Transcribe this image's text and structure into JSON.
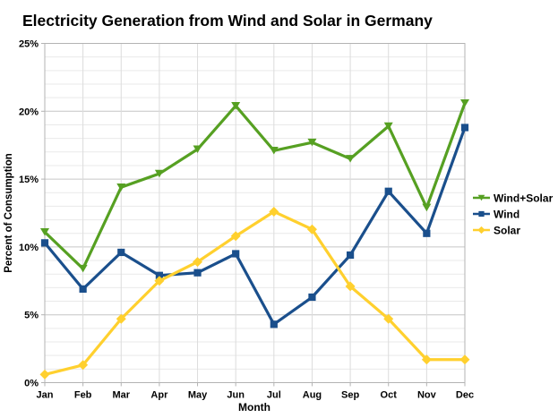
{
  "title": "Electricity Generation from Wind and Solar in Germany",
  "chart_data": {
    "type": "line",
    "title": "Electricity Generation from Wind and Solar in Germany",
    "xlabel": "Month",
    "ylabel": "Percent of Consumption",
    "ylim": [
      0,
      25
    ],
    "y_major_step": 5,
    "y_minor_step": 1,
    "y_tick_suffix": "%",
    "grid": "on",
    "legend_position": "right",
    "categories": [
      "Jan",
      "Feb",
      "Mar",
      "Apr",
      "May",
      "Jun",
      "Jul",
      "Aug",
      "Sep",
      "Oct",
      "Nov",
      "Dec"
    ],
    "series": [
      {
        "name": "Wind+Solar",
        "color": "#56a022",
        "marker": "triangle-down",
        "values": [
          11.1,
          8.4,
          14.4,
          15.4,
          17.2,
          20.4,
          17.1,
          17.7,
          16.5,
          18.9,
          12.9,
          20.6
        ]
      },
      {
        "name": "Wind",
        "color": "#1a4f8c",
        "marker": "square",
        "values": [
          10.3,
          6.9,
          9.6,
          7.9,
          8.1,
          9.5,
          4.3,
          6.3,
          9.4,
          14.1,
          11.0,
          18.8
        ]
      },
      {
        "name": "Solar",
        "color": "#ffd02e",
        "marker": "diamond",
        "values": [
          0.6,
          1.3,
          4.7,
          7.5,
          8.9,
          10.8,
          12.6,
          11.3,
          7.1,
          4.7,
          1.7,
          1.7
        ]
      }
    ],
    "colors": {
      "frame": "#b3b3b3",
      "grid_major": "#c6c6c6",
      "grid_minor": "#e9e9e9",
      "grid_vertical": "#dcdcdc",
      "background": "#ffffff",
      "text": "#000000"
    }
  }
}
